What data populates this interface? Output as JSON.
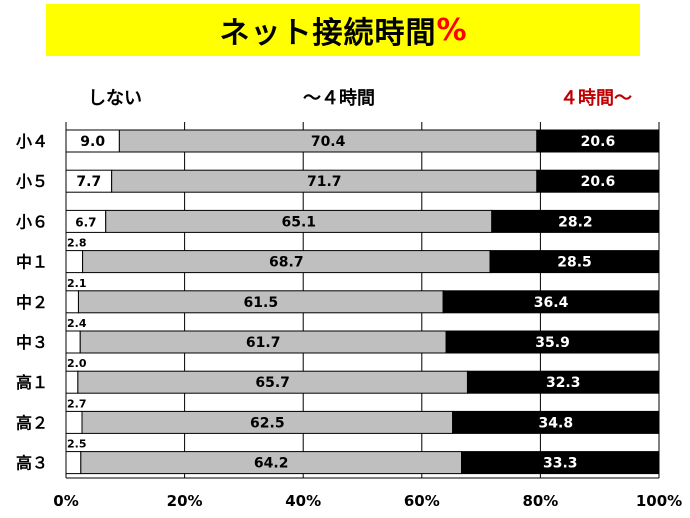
{
  "title": {
    "text": "ネット接続時間",
    "percent_sign": "%"
  },
  "legend": {
    "none": "しない",
    "under4": "～４時間",
    "over4": "４時間～"
  },
  "colors": {
    "title_bg": "#ffff00",
    "percent_sign": "#ff0000",
    "over4_label": "#c00000",
    "none": "#ffffff",
    "under4": "#bfbfbf",
    "over4": "#000000"
  },
  "chart_data": {
    "type": "bar",
    "orientation": "horizontal",
    "stacked": true,
    "categories": [
      "小４",
      "小５",
      "小６",
      "中１",
      "中２",
      "中３",
      "高１",
      "高２",
      "高３"
    ],
    "series": [
      {
        "name": "しない",
        "values": [
          9.0,
          7.7,
          6.7,
          2.8,
          2.1,
          2.4,
          2.0,
          2.7,
          2.5
        ],
        "labels": [
          "9.0",
          "7.7",
          "6.7",
          "2.8",
          "2.1",
          "2.4",
          "2.0",
          "2.7",
          "2.5"
        ]
      },
      {
        "name": "～４時間",
        "values": [
          70.4,
          71.7,
          65.1,
          68.7,
          61.5,
          61.7,
          65.7,
          62.5,
          64.2
        ],
        "labels": [
          "70.4",
          "71.7",
          "65.1",
          "68.7",
          "61.5",
          "61.7",
          "65.7",
          "62.5",
          "64.2"
        ]
      },
      {
        "name": "４時間～",
        "values": [
          20.6,
          20.6,
          28.2,
          28.5,
          36.4,
          35.9,
          32.3,
          34.8,
          33.3
        ],
        "labels": [
          "20.6",
          "20.6",
          "28.2",
          "28.5",
          "36.4",
          "35.9",
          "32.3",
          "34.8",
          "33.3"
        ]
      }
    ],
    "xlim": [
      0,
      100
    ],
    "x_ticks": [
      "0%",
      "20%",
      "40%",
      "60%",
      "80%",
      "100%"
    ],
    "grid": true
  }
}
